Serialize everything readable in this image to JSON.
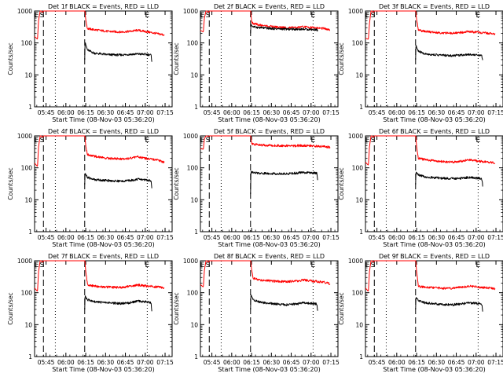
{
  "figure": {
    "panel_title_suffix": "BLACK = Events, RED = LLD",
    "xlabel": "Start Time (08-Nov-03 05:36:20)",
    "ylabel": "Counts/sec",
    "marker_labels": [
      "E",
      "S",
      "E"
    ],
    "colors": {
      "events": "#000000",
      "lld": "#ff0000",
      "frame": "#000000"
    }
  },
  "chart_data": [
    {
      "type": "line",
      "title": "Det 1f BLACK = Events, RED = LLD",
      "xlabel": "Start Time (08-Nov-03 05:36:20)",
      "ylabel": "Counts/sec",
      "x_ticks": [
        "05:45",
        "06:00",
        "06:15",
        "06:30",
        "06:45",
        "07:00",
        "07:15"
      ],
      "x_tick_minutes": [
        8.67,
        23.67,
        38.67,
        53.67,
        68.67,
        83.67,
        98.67
      ],
      "xlim_minutes": [
        0,
        104
      ],
      "y_scale": "log",
      "ylim": [
        1,
        1000
      ],
      "y_ticks": [
        1,
        10,
        100,
        1000
      ],
      "vlines_dashed_minutes": [
        6.7,
        37.9
      ],
      "vlines_dotted_minutes": [
        15.7,
        85.2
      ],
      "series": [
        {
          "name": "LLD",
          "color": "#ff0000",
          "x": [
            0,
            2.2,
            3,
            4.2,
            5.2,
            6,
            6.8,
            37.6,
            38,
            38.8,
            40,
            45,
            55,
            65,
            72,
            78,
            86,
            94,
            98
          ],
          "y": [
            160,
            130,
            500,
            1000,
            1000,
            900,
            1000,
            1000,
            1000,
            500,
            280,
            260,
            230,
            220,
            230,
            250,
            220,
            190,
            180
          ]
        },
        {
          "name": "Events",
          "color": "#000000",
          "x": [
            37.9,
            38.2,
            38.8,
            40,
            45,
            55,
            65,
            72,
            78,
            84,
            88,
            88.8
          ],
          "y": [
            30,
            110,
            85,
            60,
            48,
            43,
            42,
            44,
            45,
            44,
            42,
            25
          ]
        }
      ]
    },
    {
      "type": "line",
      "title": "Det 2f BLACK = Events, RED = LLD",
      "xlabel": "Start Time (08-Nov-03 05:36:20)",
      "ylabel": "Counts/sec",
      "x_ticks": [
        "05:45",
        "06:00",
        "06:15",
        "06:30",
        "06:45",
        "07:00",
        "07:15"
      ],
      "x_tick_minutes": [
        8.67,
        23.67,
        38.67,
        53.67,
        68.67,
        83.67,
        98.67
      ],
      "xlim_minutes": [
        0,
        104
      ],
      "y_scale": "log",
      "ylim": [
        1,
        1000
      ],
      "y_ticks": [
        1,
        10,
        100,
        1000
      ],
      "vlines_dashed_minutes": [
        6.7,
        37.9
      ],
      "vlines_dotted_minutes": [
        15.7,
        85.2
      ],
      "series": [
        {
          "name": "LLD",
          "color": "#ff0000",
          "x": [
            0,
            2.2,
            3,
            4.2,
            5.2,
            6,
            6.8,
            37.6,
            38,
            38.8,
            40,
            45,
            55,
            65,
            72,
            78,
            86,
            94,
            98
          ],
          "y": [
            250,
            220,
            600,
            1000,
            1000,
            900,
            1000,
            1000,
            1000,
            450,
            400,
            360,
            320,
            300,
            300,
            320,
            300,
            280,
            250
          ]
        },
        {
          "name": "Events",
          "color": "#000000",
          "x": [
            37.9,
            38.2,
            38.8,
            40,
            45,
            55,
            65,
            72,
            78,
            84,
            88,
            88.8
          ],
          "y": [
            200,
            400,
            340,
            320,
            300,
            280,
            270,
            270,
            270,
            265,
            260,
            230
          ]
        }
      ]
    },
    {
      "type": "line",
      "title": "Det 3f BLACK = Events, RED = LLD",
      "xlabel": "Start Time (08-Nov-03 05:36:20)",
      "ylabel": "Counts/sec",
      "x_ticks": [
        "05:45",
        "06:00",
        "06:15",
        "06:30",
        "06:45",
        "07:00",
        "07:15"
      ],
      "x_tick_minutes": [
        8.67,
        23.67,
        38.67,
        53.67,
        68.67,
        83.67,
        98.67
      ],
      "xlim_minutes": [
        0,
        104
      ],
      "y_scale": "log",
      "ylim": [
        1,
        1000
      ],
      "y_ticks": [
        1,
        10,
        100,
        1000
      ],
      "vlines_dashed_minutes": [
        6.7,
        37.9
      ],
      "vlines_dotted_minutes": [
        15.7,
        85.2
      ],
      "series": [
        {
          "name": "LLD",
          "color": "#ff0000",
          "x": [
            0,
            2.2,
            3,
            4.2,
            5.2,
            6,
            6.8,
            37.6,
            38,
            38.8,
            40,
            45,
            55,
            65,
            72,
            78,
            86,
            94,
            98
          ],
          "y": [
            140,
            130,
            400,
            1000,
            1000,
            900,
            1000,
            1000,
            1000,
            500,
            250,
            230,
            210,
            200,
            210,
            230,
            210,
            200,
            190
          ]
        },
        {
          "name": "Events",
          "color": "#000000",
          "x": [
            37.9,
            38.2,
            38.8,
            40,
            45,
            55,
            65,
            72,
            78,
            84,
            88,
            88.8
          ],
          "y": [
            30,
            90,
            70,
            55,
            45,
            42,
            40,
            42,
            44,
            42,
            40,
            25
          ]
        }
      ]
    },
    {
      "type": "line",
      "title": "Det 4f BLACK = Events, RED = LLD",
      "xlabel": "Start Time (08-Nov-03 05:36:20)",
      "ylabel": "Counts/sec",
      "x_ticks": [
        "05:45",
        "06:00",
        "06:15",
        "06:30",
        "06:45",
        "07:00",
        "07:15"
      ],
      "x_tick_minutes": [
        8.67,
        23.67,
        38.67,
        53.67,
        68.67,
        83.67,
        98.67
      ],
      "xlim_minutes": [
        0,
        104
      ],
      "y_scale": "log",
      "ylim": [
        1,
        1000
      ],
      "y_ticks": [
        1,
        10,
        100,
        1000
      ],
      "vlines_dashed_minutes": [
        6.7,
        37.9
      ],
      "vlines_dotted_minutes": [
        15.7,
        85.2
      ],
      "series": [
        {
          "name": "LLD",
          "color": "#ff0000",
          "x": [
            0,
            2.2,
            3,
            4.2,
            5.2,
            6,
            6.8,
            37.6,
            38,
            38.8,
            40,
            45,
            55,
            65,
            72,
            78,
            86,
            94,
            98
          ],
          "y": [
            140,
            110,
            450,
            1000,
            1000,
            900,
            1000,
            1000,
            1000,
            450,
            260,
            230,
            200,
            190,
            200,
            220,
            190,
            170,
            150
          ]
        },
        {
          "name": "Events",
          "color": "#000000",
          "x": [
            37.9,
            38.2,
            38.8,
            40,
            45,
            55,
            65,
            72,
            78,
            84,
            88,
            88.8
          ],
          "y": [
            30,
            70,
            60,
            50,
            43,
            40,
            38,
            40,
            44,
            42,
            40,
            20
          ]
        }
      ]
    },
    {
      "type": "line",
      "title": "Det 5f BLACK = Events, RED = LLD",
      "xlabel": "Start Time (08-Nov-03 05:36:20)",
      "ylabel": "Counts/sec",
      "x_ticks": [
        "05:45",
        "06:00",
        "06:15",
        "06:30",
        "06:45",
        "07:00",
        "07:15"
      ],
      "x_tick_minutes": [
        8.67,
        23.67,
        38.67,
        53.67,
        68.67,
        83.67,
        98.67
      ],
      "xlim_minutes": [
        0,
        104
      ],
      "y_scale": "log",
      "ylim": [
        1,
        1000
      ],
      "y_ticks": [
        1,
        10,
        100,
        1000
      ],
      "vlines_dashed_minutes": [
        6.7,
        37.9
      ],
      "vlines_dotted_minutes": [
        15.7,
        85.2
      ],
      "series": [
        {
          "name": "LLD",
          "color": "#ff0000",
          "x": [
            0,
            2.2,
            3,
            4.2,
            5.2,
            6,
            6.8,
            37.6,
            38,
            38.8,
            40,
            45,
            55,
            65,
            72,
            78,
            86,
            94,
            98
          ],
          "y": [
            400,
            380,
            800,
            1000,
            1000,
            950,
            1000,
            1000,
            1000,
            560,
            540,
            520,
            500,
            490,
            490,
            500,
            480,
            460,
            440
          ]
        },
        {
          "name": "Events",
          "color": "#000000",
          "x": [
            37.9,
            38.2,
            38.8,
            40,
            45,
            55,
            65,
            72,
            78,
            84,
            88,
            88.8
          ],
          "y": [
            15,
            80,
            75,
            70,
            68,
            66,
            65,
            68,
            72,
            70,
            68,
            40
          ]
        }
      ]
    },
    {
      "type": "line",
      "title": "Det 6f BLACK = Events, RED = LLD",
      "xlabel": "Start Time (08-Nov-03 05:36:20)",
      "ylabel": "Counts/sec",
      "x_ticks": [
        "05:45",
        "06:00",
        "06:15",
        "06:30",
        "06:45",
        "07:00",
        "07:15"
      ],
      "x_tick_minutes": [
        8.67,
        23.67,
        38.67,
        53.67,
        68.67,
        83.67,
        98.67
      ],
      "xlim_minutes": [
        0,
        104
      ],
      "y_scale": "log",
      "ylim": [
        1,
        1000
      ],
      "y_ticks": [
        1,
        10,
        100,
        1000
      ],
      "vlines_dashed_minutes": [
        6.7,
        37.9
      ],
      "vlines_dotted_minutes": [
        15.7,
        85.2
      ],
      "series": [
        {
          "name": "LLD",
          "color": "#ff0000",
          "x": [
            0,
            2.2,
            3,
            4.2,
            5.2,
            6,
            6.8,
            37.6,
            38,
            38.8,
            40,
            45,
            55,
            65,
            72,
            78,
            86,
            94,
            98
          ],
          "y": [
            150,
            120,
            450,
            1000,
            1000,
            900,
            1000,
            1000,
            1000,
            420,
            200,
            180,
            160,
            150,
            160,
            180,
            160,
            150,
            140
          ]
        },
        {
          "name": "Events",
          "color": "#000000",
          "x": [
            37.9,
            38.2,
            38.8,
            40,
            45,
            55,
            65,
            72,
            78,
            84,
            88,
            88.8
          ],
          "y": [
            30,
            75,
            70,
            60,
            52,
            48,
            46,
            47,
            50,
            48,
            45,
            25
          ]
        }
      ]
    },
    {
      "type": "line",
      "title": "Det 7f BLACK = Events, RED = LLD",
      "xlabel": "Start Time (08-Nov-03 05:36:20)",
      "ylabel": "Counts/sec",
      "x_ticks": [
        "05:45",
        "06:00",
        "06:15",
        "06:30",
        "06:45",
        "07:00",
        "07:15"
      ],
      "x_tick_minutes": [
        8.67,
        23.67,
        38.67,
        53.67,
        68.67,
        83.67,
        98.67
      ],
      "xlim_minutes": [
        0,
        104
      ],
      "y_scale": "log",
      "ylim": [
        1,
        1000
      ],
      "y_ticks": [
        1,
        10,
        100,
        1000
      ],
      "vlines_dashed_minutes": [
        6.7,
        37.9
      ],
      "vlines_dotted_minutes": [
        15.7,
        85.2
      ],
      "series": [
        {
          "name": "LLD",
          "color": "#ff0000",
          "x": [
            0,
            2.2,
            3,
            4.2,
            5.2,
            6,
            6.8,
            37.6,
            38,
            38.8,
            40,
            45,
            55,
            65,
            72,
            78,
            86,
            94,
            98
          ],
          "y": [
            140,
            110,
            450,
            1000,
            1000,
            900,
            1000,
            1000,
            1000,
            420,
            180,
            160,
            150,
            145,
            160,
            175,
            160,
            150,
            140
          ]
        },
        {
          "name": "Events",
          "color": "#000000",
          "x": [
            37.9,
            38.2,
            38.8,
            40,
            45,
            55,
            65,
            72,
            78,
            84,
            88,
            88.8
          ],
          "y": [
            30,
            85,
            70,
            60,
            52,
            48,
            46,
            48,
            55,
            52,
            48,
            25
          ]
        }
      ]
    },
    {
      "type": "line",
      "title": "Det 8f BLACK = Events, RED = LLD",
      "xlabel": "Start Time (08-Nov-03 05:36:20)",
      "ylabel": "Counts/sec",
      "x_ticks": [
        "05:45",
        "06:00",
        "06:15",
        "06:30",
        "06:45",
        "07:00",
        "07:15"
      ],
      "x_tick_minutes": [
        8.67,
        23.67,
        38.67,
        53.67,
        68.67,
        83.67,
        98.67
      ],
      "xlim_minutes": [
        0,
        104
      ],
      "y_scale": "log",
      "ylim": [
        1,
        1000
      ],
      "y_ticks": [
        1,
        10,
        100,
        1000
      ],
      "vlines_dashed_minutes": [
        6.7,
        37.9
      ],
      "vlines_dotted_minutes": [
        15.7,
        85.2
      ],
      "series": [
        {
          "name": "LLD",
          "color": "#ff0000",
          "x": [
            0,
            2.2,
            3,
            4.2,
            5.2,
            6,
            6.8,
            37.6,
            38,
            38.8,
            40,
            45,
            55,
            65,
            72,
            78,
            86,
            94,
            98
          ],
          "y": [
            180,
            150,
            500,
            1000,
            1000,
            900,
            1000,
            1000,
            1000,
            500,
            280,
            250,
            230,
            220,
            230,
            250,
            230,
            210,
            190
          ]
        },
        {
          "name": "Events",
          "color": "#000000",
          "x": [
            37.9,
            38.2,
            38.8,
            40,
            45,
            55,
            65,
            72,
            78,
            84,
            88,
            88.8
          ],
          "y": [
            30,
            90,
            75,
            60,
            50,
            45,
            42,
            44,
            48,
            46,
            44,
            25
          ]
        }
      ]
    },
    {
      "type": "line",
      "title": "Det 9f BLACK = Events, RED = LLD",
      "xlabel": "Start Time (08-Nov-03 05:36:20)",
      "ylabel": "Counts/sec",
      "x_ticks": [
        "05:45",
        "06:00",
        "06:15",
        "06:30",
        "06:45",
        "07:00",
        "07:15"
      ],
      "x_tick_minutes": [
        8.67,
        23.67,
        38.67,
        53.67,
        68.67,
        83.67,
        98.67
      ],
      "xlim_minutes": [
        0,
        104
      ],
      "y_scale": "log",
      "ylim": [
        1,
        1000
      ],
      "y_ticks": [
        1,
        10,
        100,
        1000
      ],
      "vlines_dashed_minutes": [
        6.7,
        37.9
      ],
      "vlines_dotted_minutes": [
        15.7,
        85.2
      ],
      "series": [
        {
          "name": "LLD",
          "color": "#ff0000",
          "x": [
            0,
            2.2,
            3,
            4.2,
            5.2,
            6,
            6.8,
            37.6,
            38,
            38.8,
            40,
            45,
            55,
            65,
            72,
            78,
            86,
            94,
            98
          ],
          "y": [
            140,
            110,
            450,
            1000,
            1000,
            900,
            1000,
            1000,
            1000,
            420,
            160,
            150,
            140,
            135,
            150,
            160,
            150,
            140,
            130
          ]
        },
        {
          "name": "Events",
          "color": "#000000",
          "x": [
            37.9,
            38.2,
            38.8,
            40,
            45,
            55,
            65,
            72,
            78,
            84,
            88,
            88.8
          ],
          "y": [
            30,
            75,
            65,
            55,
            48,
            44,
            42,
            44,
            48,
            46,
            44,
            25
          ]
        }
      ]
    }
  ]
}
